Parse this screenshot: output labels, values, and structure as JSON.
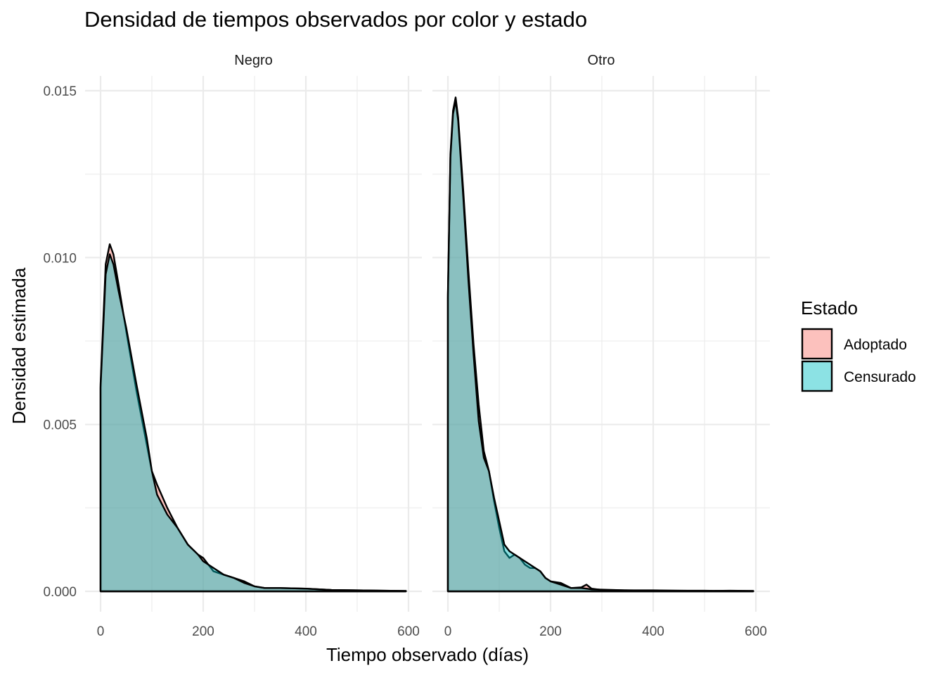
{
  "chart_data": {
    "type": "area",
    "subtype": "density",
    "title": "Densidad de tiempos observados por color y estado",
    "xlabel": "Tiempo observado (días)",
    "ylabel": "Densidad estimada",
    "xlim": [
      0,
      600
    ],
    "ylim": [
      0,
      0.015
    ],
    "x_ticks": [
      0,
      200,
      400,
      600
    ],
    "x_tick_labels": [
      "0",
      "200",
      "400",
      "600"
    ],
    "y_ticks": [
      0,
      0.005,
      0.01,
      0.015
    ],
    "y_tick_labels": [
      "0.000",
      "0.005",
      "0.010",
      "0.015"
    ],
    "grid": true,
    "legend": {
      "title": "Estado",
      "position": "right",
      "entries": [
        {
          "label": "Adoptado",
          "color": "#F8766D"
        },
        {
          "label": "Censurado",
          "color": "#00BFC4"
        }
      ]
    },
    "fill_alpha": 0.45,
    "facets": [
      {
        "label": "Negro",
        "series": [
          {
            "name": "Adoptado",
            "x": [
              0,
              10,
              18,
              25,
              35,
              50,
              70,
              90,
              100,
              110,
              130,
              150,
              170,
              190,
              200,
              220,
              240,
              260,
              280,
              300,
              320,
              350,
              400,
              450,
              500,
              550,
              595
            ],
            "y": [
              0.0062,
              0.0098,
              0.0104,
              0.0101,
              0.0092,
              0.0078,
              0.006,
              0.0044,
              0.0036,
              0.0032,
              0.0025,
              0.0019,
              0.0014,
              0.0011,
              0.001,
              0.0006,
              0.0005,
              0.0004,
              0.0003,
              0.00015,
              0.0001,
              0.0001,
              8e-05,
              4e-05,
              3e-05,
              2e-05,
              1e-05
            ]
          },
          {
            "name": "Censurado",
            "x": [
              0,
              10,
              18,
              25,
              35,
              50,
              70,
              90,
              100,
              110,
              130,
              150,
              170,
              190,
              200,
              220,
              240,
              260,
              280,
              300,
              320,
              350,
              400,
              450,
              500,
              550,
              595
            ],
            "y": [
              0.0061,
              0.0095,
              0.0101,
              0.0098,
              0.009,
              0.0079,
              0.0062,
              0.0046,
              0.0036,
              0.0029,
              0.0023,
              0.0019,
              0.0014,
              0.0011,
              0.0009,
              0.0007,
              0.0005,
              0.0004,
              0.00025,
              0.00015,
              0.0001,
              0.0001,
              8e-05,
              4e-05,
              3e-05,
              2e-05,
              1e-05
            ]
          }
        ]
      },
      {
        "label": "Otro",
        "series": [
          {
            "name": "Adoptado",
            "x": [
              0,
              5,
              10,
              15,
              20,
              30,
              40,
              50,
              60,
              70,
              80,
              90,
              100,
              110,
              120,
              130,
              140,
              150,
              160,
              170,
              180,
              190,
              200,
              220,
              240,
              260,
              270,
              280,
              300,
              350,
              400,
              450,
              500,
              550,
              595
            ],
            "y": [
              0.0089,
              0.0131,
              0.0144,
              0.0148,
              0.0142,
              0.012,
              0.0096,
              0.0074,
              0.0056,
              0.0042,
              0.0036,
              0.0027,
              0.0019,
              0.0012,
              0.001,
              0.0011,
              0.001,
              0.0008,
              0.0007,
              0.0007,
              0.0006,
              0.0004,
              0.0003,
              0.00025,
              0.0001,
              0.00012,
              0.0002,
              8e-05,
              4e-05,
              3e-05,
              2e-05,
              2e-05,
              2e-05,
              1e-05,
              1e-05
            ]
          },
          {
            "name": "Censurado",
            "x": [
              0,
              5,
              10,
              15,
              20,
              30,
              40,
              50,
              60,
              70,
              80,
              90,
              100,
              110,
              120,
              130,
              140,
              150,
              160,
              170,
              180,
              190,
              200,
              220,
              240,
              260,
              270,
              280,
              300,
              350,
              400,
              450,
              500,
              550,
              595
            ],
            "y": [
              0.0088,
              0.013,
              0.0143,
              0.0147,
              0.0141,
              0.0118,
              0.0093,
              0.0071,
              0.0051,
              0.004,
              0.0036,
              0.0028,
              0.0021,
              0.0014,
              0.0012,
              0.0011,
              0.001,
              0.0009,
              0.0008,
              0.0007,
              0.0006,
              0.0004,
              0.0003,
              0.0002,
              0.0001,
              0.0001,
              8e-05,
              6e-05,
              5e-05,
              3e-05,
              3e-05,
              2e-05,
              1e-05,
              2e-05,
              1e-05
            ]
          }
        ]
      }
    ]
  }
}
